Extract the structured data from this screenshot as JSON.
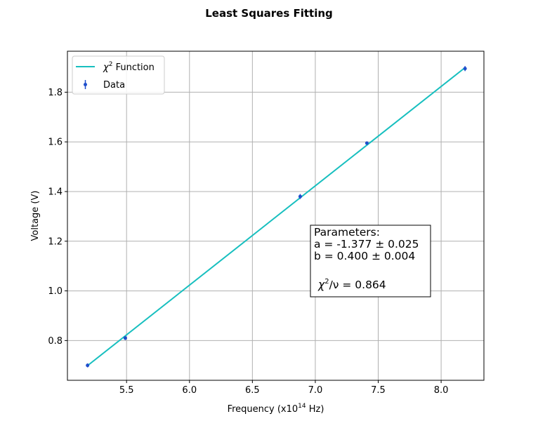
{
  "chart_data": {
    "type": "line",
    "title": "Least Squares Fitting",
    "xlabel": {
      "prefix": "Frequency (x10",
      "exponent": "14",
      "suffix": " Hz)"
    },
    "ylabel": "Voltage (V)",
    "xlim": [
      5.03,
      8.34
    ],
    "ylim": [
      0.64,
      1.965
    ],
    "x_ticks": [
      5.5,
      6.0,
      6.5,
      7.0,
      7.5,
      8.0
    ],
    "y_ticks": [
      0.8,
      1.0,
      1.2,
      1.4,
      1.6,
      1.8
    ],
    "grid": true,
    "legend_position": "top-left",
    "series": [
      {
        "name": "Data",
        "kind": "errorbar",
        "x": [
          5.19,
          5.49,
          6.88,
          7.41,
          8.19
        ],
        "y": [
          0.7,
          0.81,
          1.38,
          1.595,
          1.895
        ],
        "yerr": [
          0.008,
          0.008,
          0.01,
          0.007,
          0.01
        ],
        "color": "#1f4fcc"
      },
      {
        "name_symbol": "χ",
        "name_sup": "2",
        "name_text": " Function",
        "kind": "line",
        "x": [
          5.19,
          8.19
        ],
        "y": [
          0.699,
          1.899
        ],
        "color": "#17bfbf"
      }
    ],
    "annotation": {
      "lines": [
        "Parameters:",
        "a = -1.377 ± 0.025",
        "b = 0.400 ± 0.004"
      ],
      "chi_symbol": "χ",
      "chi_sup": "2",
      "chi_rest": "/ν = 0.864"
    }
  }
}
